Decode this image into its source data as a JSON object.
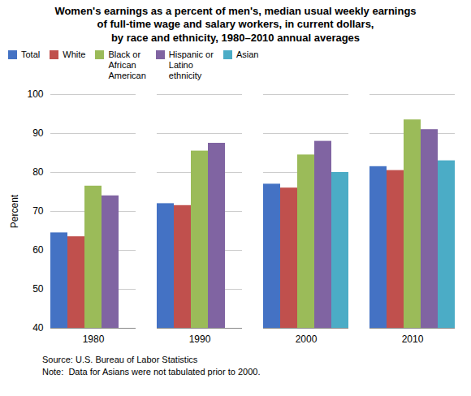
{
  "chart_data": {
    "type": "bar",
    "title": "Women's earnings as a percent of men's, median usual weekly earnings\nof full-time wage and salary workers, in current dollars,\nby race and ethnicity, 1980–2010 annual averages",
    "categories": [
      "1980",
      "1990",
      "2000",
      "2010"
    ],
    "series": [
      {
        "name": "Total",
        "color": "#4472C4",
        "values": [
          64.5,
          72.0,
          77.0,
          81.5
        ]
      },
      {
        "name": "White",
        "color": "#C0504D",
        "values": [
          63.5,
          71.5,
          76.0,
          80.5
        ]
      },
      {
        "name": "Black or\nAfrican\nAmerican",
        "color": "#9BBB59",
        "values": [
          76.5,
          85.5,
          84.5,
          93.5
        ]
      },
      {
        "name": "Hispanic or\nLatino\nethnicity",
        "color": "#8064A2",
        "values": [
          74.0,
          87.5,
          88.0,
          91.0
        ]
      },
      {
        "name": "Asian",
        "color": "#4BACC6",
        "values": [
          null,
          null,
          80.0,
          83.0
        ]
      }
    ],
    "ylabel": "Percent",
    "ylim": [
      40,
      100
    ],
    "yticks": [
      40,
      50,
      60,
      70,
      80,
      90,
      100
    ],
    "grid": true,
    "legend": "upper left",
    "annotations": [
      "Source: U.S. Bureau of Labor Statistics",
      "Note:  Data for Asians were not tabulated prior to 2000."
    ]
  }
}
